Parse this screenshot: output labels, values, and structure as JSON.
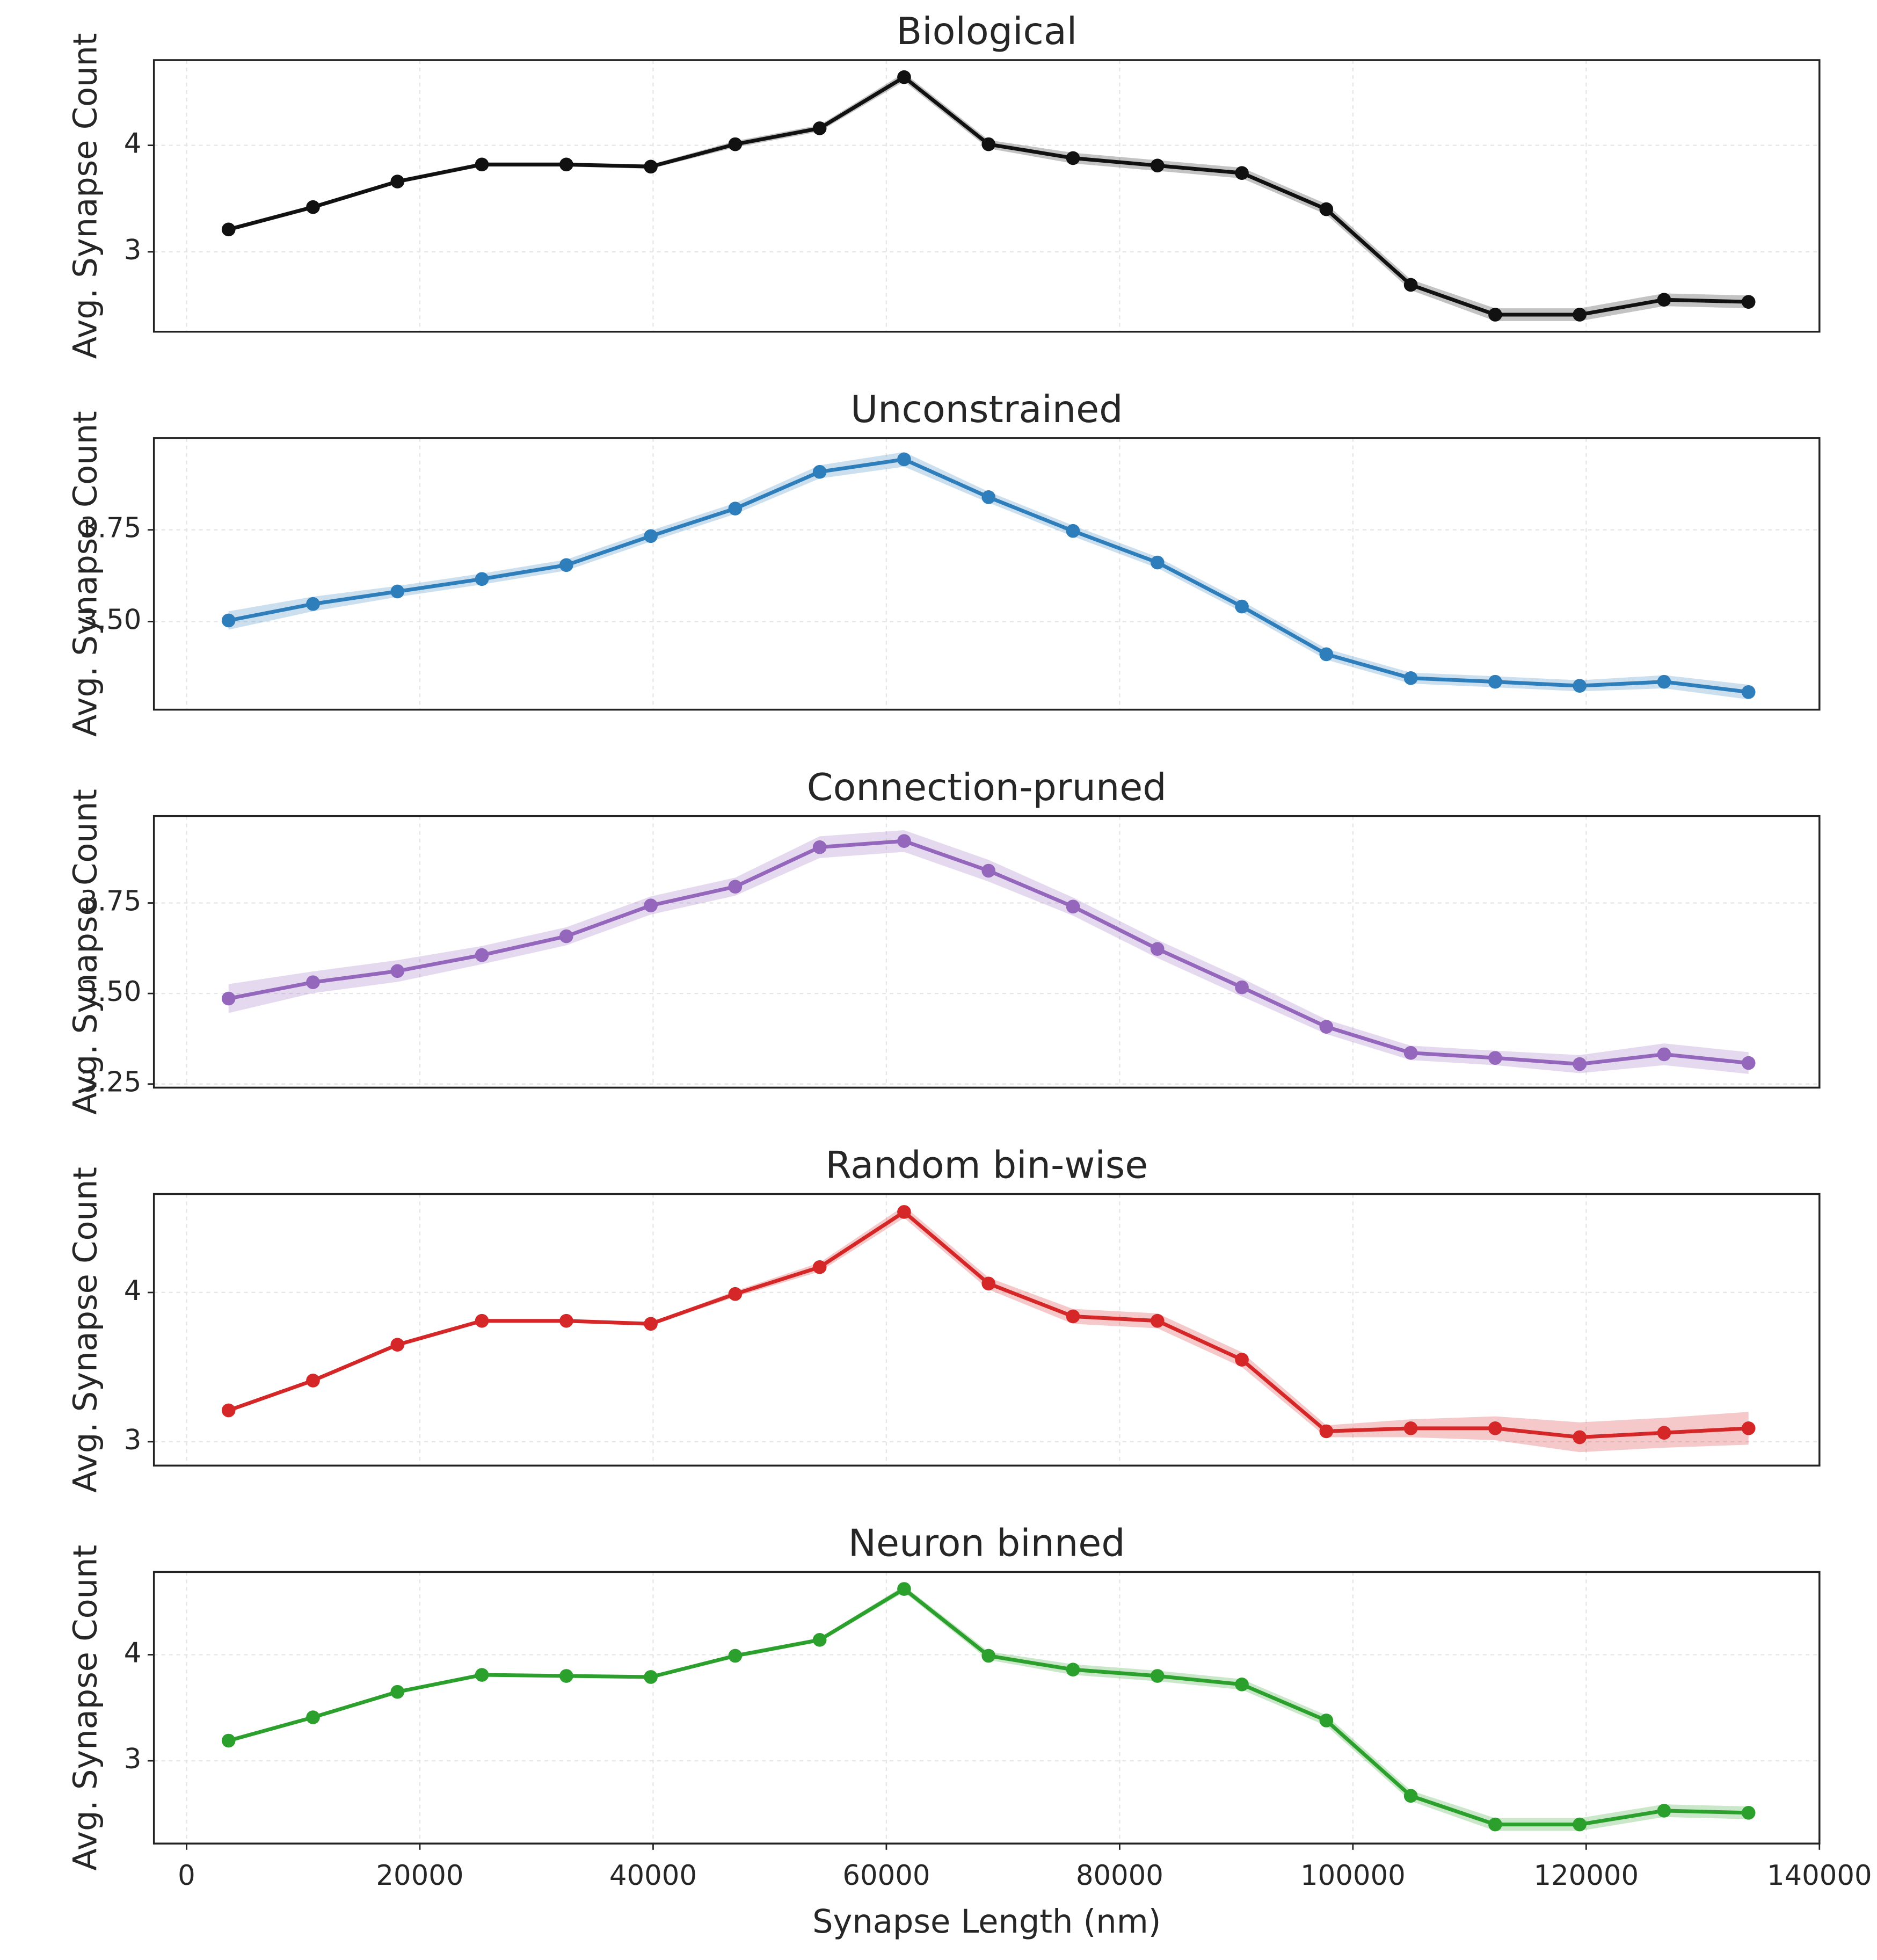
{
  "chart_data": [
    {
      "type": "line",
      "title": "Biological",
      "ylabel": "Avg. Synapse Count",
      "color": "#111111",
      "x": [
        3600,
        10840,
        18080,
        25320,
        32560,
        39800,
        47040,
        54280,
        61520,
        68760,
        76000,
        83240,
        90480,
        97720,
        104960,
        112200,
        119440,
        126680,
        133920
      ],
      "values": [
        3.21,
        3.42,
        3.66,
        3.82,
        3.82,
        3.8,
        4.01,
        4.16,
        4.64,
        4.01,
        3.88,
        3.81,
        3.74,
        3.4,
        2.69,
        2.41,
        2.41,
        2.55,
        2.53
      ],
      "errors": [
        0.02,
        0.02,
        0.02,
        0.02,
        0.02,
        0.02,
        0.03,
        0.03,
        0.04,
        0.04,
        0.05,
        0.05,
        0.05,
        0.05,
        0.05,
        0.06,
        0.06,
        0.06,
        0.06
      ],
      "xlim": [
        -2800,
        140000
      ],
      "xticks": [
        0,
        20000,
        40000,
        60000,
        80000,
        100000,
        120000,
        140000
      ],
      "ylim": [
        2.25,
        4.8
      ],
      "yticks": [
        3,
        4
      ],
      "grid": true
    },
    {
      "type": "line",
      "title": "Unconstrained",
      "ylabel": "Avg. Synapse Count",
      "color": "#2f7ebc",
      "x": [
        3600,
        10840,
        18080,
        25320,
        32560,
        39800,
        47040,
        54280,
        61520,
        68760,
        76000,
        83240,
        90480,
        97720,
        104960,
        112200,
        119440,
        126680,
        133920
      ],
      "values": [
        3.503,
        3.548,
        3.582,
        3.616,
        3.654,
        3.733,
        3.808,
        3.908,
        3.942,
        3.839,
        3.747,
        3.661,
        3.541,
        3.411,
        3.346,
        3.336,
        3.325,
        3.336,
        3.308
      ],
      "errors": [
        0.025,
        0.02,
        0.015,
        0.015,
        0.015,
        0.015,
        0.015,
        0.018,
        0.02,
        0.015,
        0.015,
        0.015,
        0.015,
        0.015,
        0.015,
        0.015,
        0.015,
        0.018,
        0.02
      ],
      "xlim": [
        -2800,
        140000
      ],
      "xticks": [
        0,
        20000,
        40000,
        60000,
        80000,
        100000,
        120000,
        140000
      ],
      "ylim": [
        3.26,
        4.0
      ],
      "yticks": [
        {
          "value": 3.5,
          "label": "3.50"
        },
        {
          "value": 3.75,
          "label": "3.75"
        }
      ],
      "grid": true
    },
    {
      "type": "line",
      "title": "Connection-pruned",
      "ylabel": "Avg. Synapse Count",
      "color": "#9467bd",
      "x": [
        3600,
        10840,
        18080,
        25320,
        32560,
        39800,
        47040,
        54280,
        61520,
        68760,
        76000,
        83240,
        90480,
        97720,
        104960,
        112200,
        119440,
        126680,
        133920
      ],
      "values": [
        3.486,
        3.531,
        3.562,
        3.606,
        3.658,
        3.743,
        3.795,
        3.904,
        3.921,
        3.839,
        3.74,
        3.623,
        3.517,
        3.408,
        3.336,
        3.322,
        3.305,
        3.332,
        3.308
      ],
      "errors": [
        0.04,
        0.03,
        0.03,
        0.025,
        0.025,
        0.025,
        0.025,
        0.03,
        0.03,
        0.03,
        0.025,
        0.025,
        0.025,
        0.02,
        0.02,
        0.02,
        0.025,
        0.03,
        0.03
      ],
      "xlim": [
        -2800,
        140000
      ],
      "xticks": [
        0,
        20000,
        40000,
        60000,
        80000,
        100000,
        120000,
        140000
      ],
      "ylim": [
        3.24,
        3.99
      ],
      "yticks": [
        {
          "value": 3.25,
          "label": "3.25"
        },
        {
          "value": 3.5,
          "label": "3.50"
        },
        {
          "value": 3.75,
          "label": "3.75"
        }
      ],
      "grid": true
    },
    {
      "type": "line",
      "title": "Random bin-wise",
      "ylabel": "Avg. Synapse Count",
      "color": "#d62728",
      "x": [
        3600,
        10840,
        18080,
        25320,
        32560,
        39800,
        47040,
        54280,
        61520,
        68760,
        76000,
        83240,
        90480,
        97720,
        104960,
        112200,
        119440,
        126680,
        133920
      ],
      "values": [
        3.21,
        3.41,
        3.65,
        3.81,
        3.81,
        3.79,
        3.99,
        4.17,
        4.54,
        4.06,
        3.84,
        3.81,
        3.55,
        3.07,
        3.09,
        3.09,
        3.03,
        3.06,
        3.09
      ],
      "errors": [
        0.01,
        0.01,
        0.01,
        0.01,
        0.01,
        0.01,
        0.02,
        0.03,
        0.04,
        0.04,
        0.05,
        0.05,
        0.05,
        0.04,
        0.06,
        0.08,
        0.1,
        0.1,
        0.11
      ],
      "xlim": [
        -2800,
        140000
      ],
      "xticks": [
        0,
        20000,
        40000,
        60000,
        80000,
        100000,
        120000,
        140000
      ],
      "ylim": [
        2.84,
        4.66
      ],
      "yticks": [
        3,
        4
      ],
      "grid": true
    },
    {
      "type": "line",
      "title": "Neuron binned",
      "ylabel": "Avg. Synapse Count",
      "xlabel": "Synapse Length (nm)",
      "color": "#2ca02c",
      "x": [
        3600,
        10840,
        18080,
        25320,
        32560,
        39800,
        47040,
        54280,
        61520,
        68760,
        76000,
        83240,
        90480,
        97720,
        104960,
        112200,
        119440,
        126680,
        133920
      ],
      "values": [
        3.19,
        3.41,
        3.65,
        3.81,
        3.8,
        3.79,
        3.99,
        4.14,
        4.62,
        3.99,
        3.86,
        3.8,
        3.72,
        3.38,
        2.67,
        2.4,
        2.4,
        2.53,
        2.51
      ],
      "errors": [
        0.01,
        0.01,
        0.01,
        0.01,
        0.01,
        0.01,
        0.02,
        0.02,
        0.03,
        0.04,
        0.05,
        0.05,
        0.05,
        0.05,
        0.05,
        0.06,
        0.06,
        0.06,
        0.06
      ],
      "xlim": [
        -2800,
        140000
      ],
      "xticks": [
        0,
        20000,
        40000,
        60000,
        80000,
        100000,
        120000,
        140000
      ],
      "ylim": [
        2.22,
        4.78
      ],
      "yticks": [
        3,
        4
      ],
      "grid": true
    }
  ]
}
